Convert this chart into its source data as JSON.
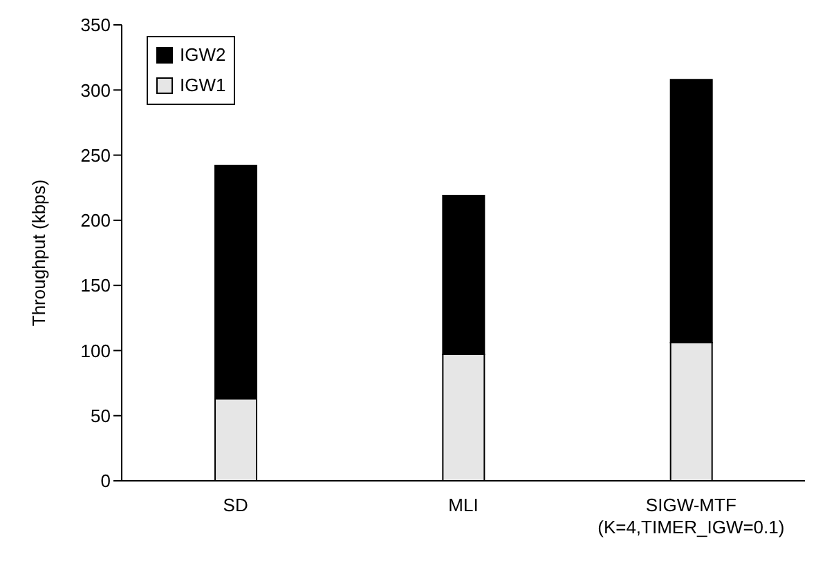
{
  "chart_data": {
    "type": "bar",
    "ylabel": "Throughput (kbps)",
    "categories": [
      "SD",
      "MLI",
      "SIGW-MTF\n(K=4,TIMER_IGW=0.1)"
    ],
    "stacked": true,
    "series": [
      {
        "name": "IGW1",
        "color": "#e6e6e6",
        "values": [
          63,
          97,
          106
        ]
      },
      {
        "name": "IGW2",
        "color": "#000000",
        "values": [
          179,
          122,
          202
        ]
      }
    ],
    "ylim": [
      0,
      350
    ],
    "yticks": [
      0,
      50,
      100,
      150,
      200,
      250,
      300,
      350
    ],
    "grid": false,
    "legend": "top left"
  }
}
